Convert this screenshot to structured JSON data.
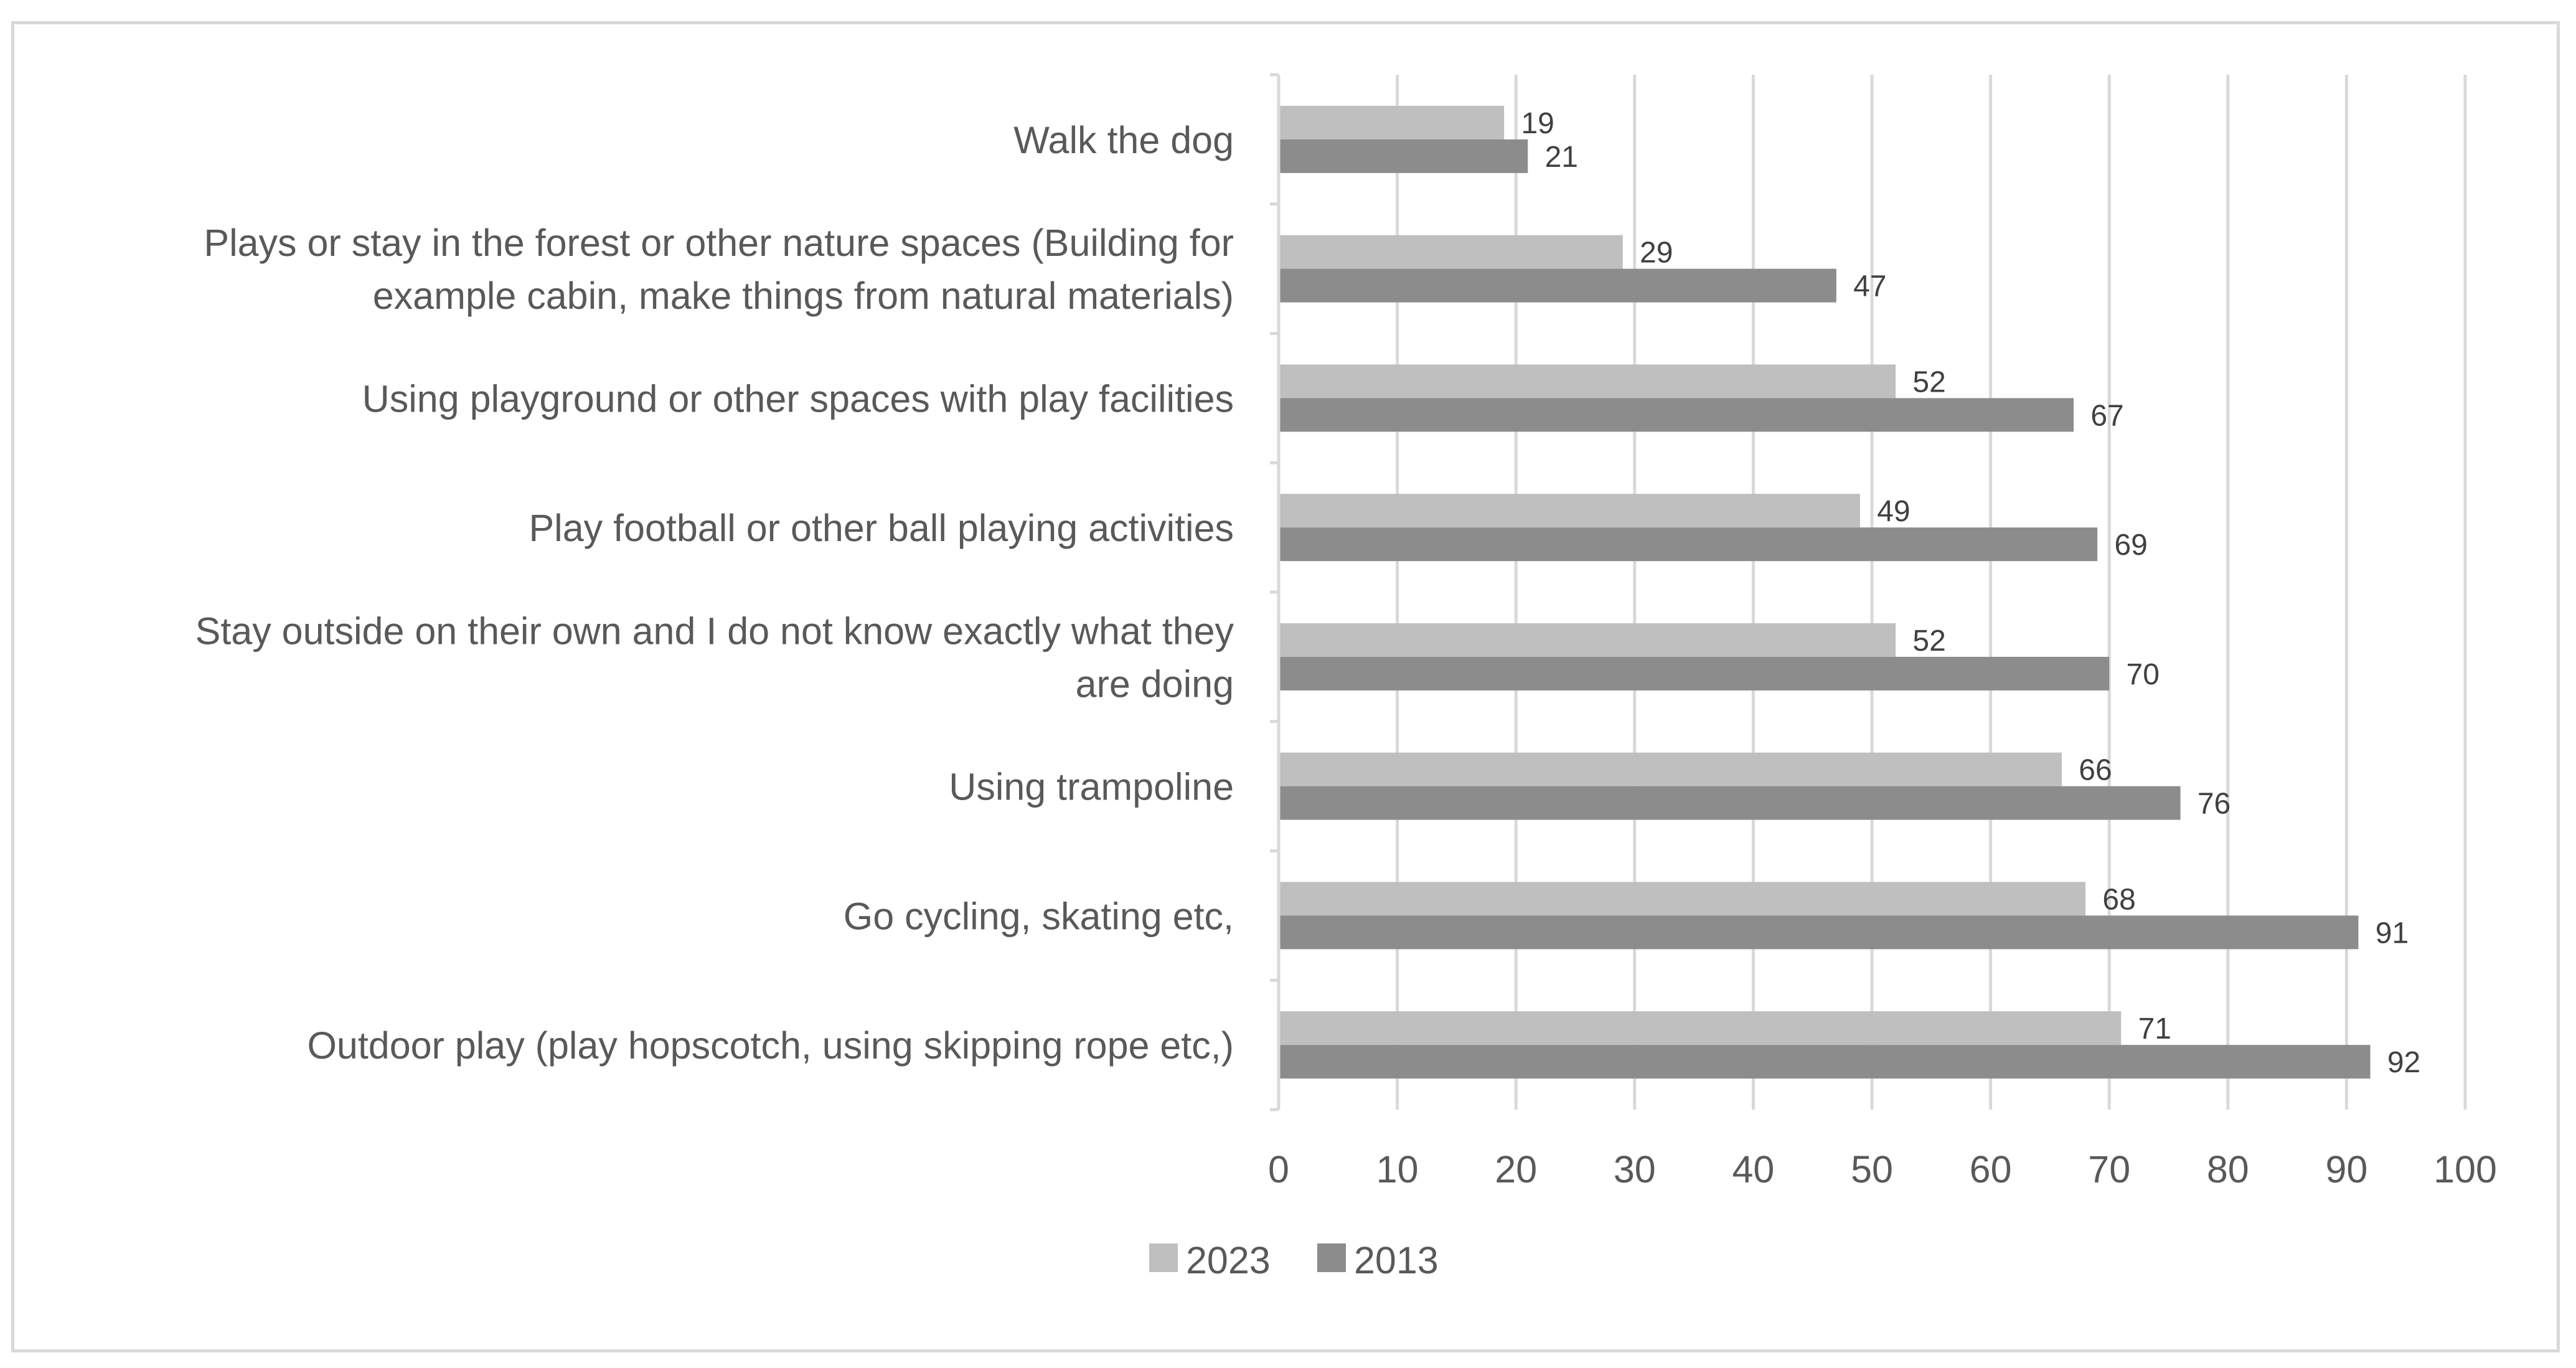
{
  "chart_data": {
    "type": "bar",
    "orientation": "horizontal",
    "categories": [
      "Walk the dog",
      "Plays or stay in the forest or other nature spaces (Building for example cabin, make things from natural materials)",
      "Using playground or other spaces with play facilities",
      "Play football or other ball playing activities",
      "Stay outside on their own and I do not know exactly what they are doing",
      "Using trampoline",
      "Go cycling, skating etc,",
      "Outdoor play (play hopscotch, using skipping rope etc,)"
    ],
    "category_lines": [
      [
        "Walk the dog"
      ],
      [
        "Plays or stay in the forest or other nature spaces (Building for",
        "example cabin, make things from natural materials)"
      ],
      [
        "Using playground or other spaces with play facilities"
      ],
      [
        "Play football or other ball playing activities"
      ],
      [
        "Stay outside on their own and I do not know exactly what they",
        "are doing"
      ],
      [
        "Using trampoline"
      ],
      [
        "Go cycling, skating etc,"
      ],
      [
        "Outdoor play (play hopscotch, using skipping rope etc,)"
      ]
    ],
    "series": [
      {
        "name": "2023",
        "color": "#bfbfbf",
        "values": [
          19,
          29,
          52,
          49,
          52,
          66,
          68,
          71
        ]
      },
      {
        "name": "2013",
        "color": "#8c8c8c",
        "values": [
          21,
          47,
          67,
          69,
          70,
          76,
          91,
          92
        ]
      }
    ],
    "xlim": [
      0,
      100
    ],
    "xticks": [
      0,
      10,
      20,
      30,
      40,
      50,
      60,
      70,
      80,
      90,
      100
    ],
    "grid": true,
    "gridColor": "#d9d9d9",
    "legend": "bottom",
    "title": "",
    "xlabel": "",
    "ylabel": ""
  }
}
